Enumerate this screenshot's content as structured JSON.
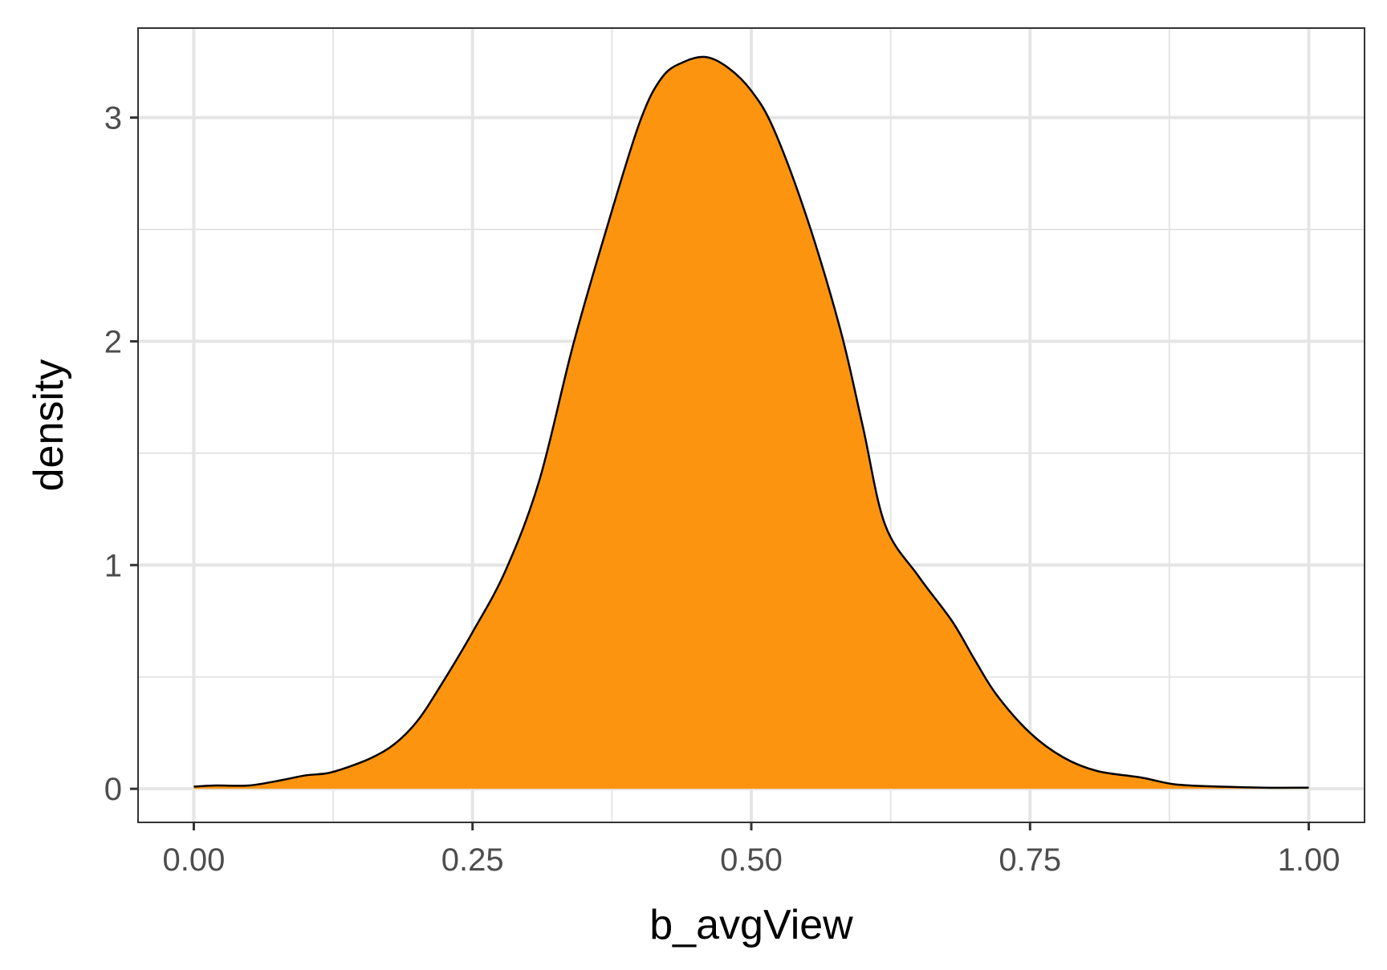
{
  "chart_data": {
    "type": "area",
    "title": "",
    "xlabel": "b_avgView",
    "ylabel": "density",
    "xlim": [
      -0.05,
      1.05
    ],
    "ylim": [
      -0.15,
      3.4
    ],
    "x_major_ticks": [
      0.0,
      0.25,
      0.5,
      0.75,
      1.0
    ],
    "x_tick_labels": [
      "0.00",
      "0.25",
      "0.50",
      "0.75",
      "1.00"
    ],
    "x_minor_ticks": [
      0.125,
      0.375,
      0.625,
      0.875
    ],
    "y_major_ticks": [
      0,
      1,
      2,
      3
    ],
    "y_tick_labels": [
      "0",
      "1",
      "2",
      "3"
    ],
    "y_minor_ticks": [
      0.5,
      1.5,
      2.5
    ],
    "grid": true,
    "legend": "none",
    "fill_color": "#FC9410",
    "line_color": "#000000",
    "series": [
      {
        "x": [
          0.0,
          0.02,
          0.05,
          0.08,
          0.1,
          0.12,
          0.14,
          0.16,
          0.18,
          0.2,
          0.22,
          0.25,
          0.28,
          0.31,
          0.34,
          0.37,
          0.4,
          0.42,
          0.44,
          0.46,
          0.48,
          0.5,
          0.52,
          0.55,
          0.58,
          0.6,
          0.62,
          0.65,
          0.68,
          0.7,
          0.72,
          0.75,
          0.78,
          0.81,
          0.85,
          0.88,
          0.92,
          0.96,
          1.0
        ],
        "y": [
          0.01,
          0.015,
          0.015,
          0.04,
          0.06,
          0.07,
          0.1,
          0.14,
          0.2,
          0.3,
          0.45,
          0.7,
          0.98,
          1.38,
          1.98,
          2.5,
          2.98,
          3.18,
          3.25,
          3.27,
          3.22,
          3.12,
          2.95,
          2.55,
          2.05,
          1.62,
          1.18,
          0.95,
          0.75,
          0.58,
          0.42,
          0.25,
          0.14,
          0.08,
          0.05,
          0.02,
          0.01,
          0.005,
          0.005
        ]
      }
    ]
  }
}
